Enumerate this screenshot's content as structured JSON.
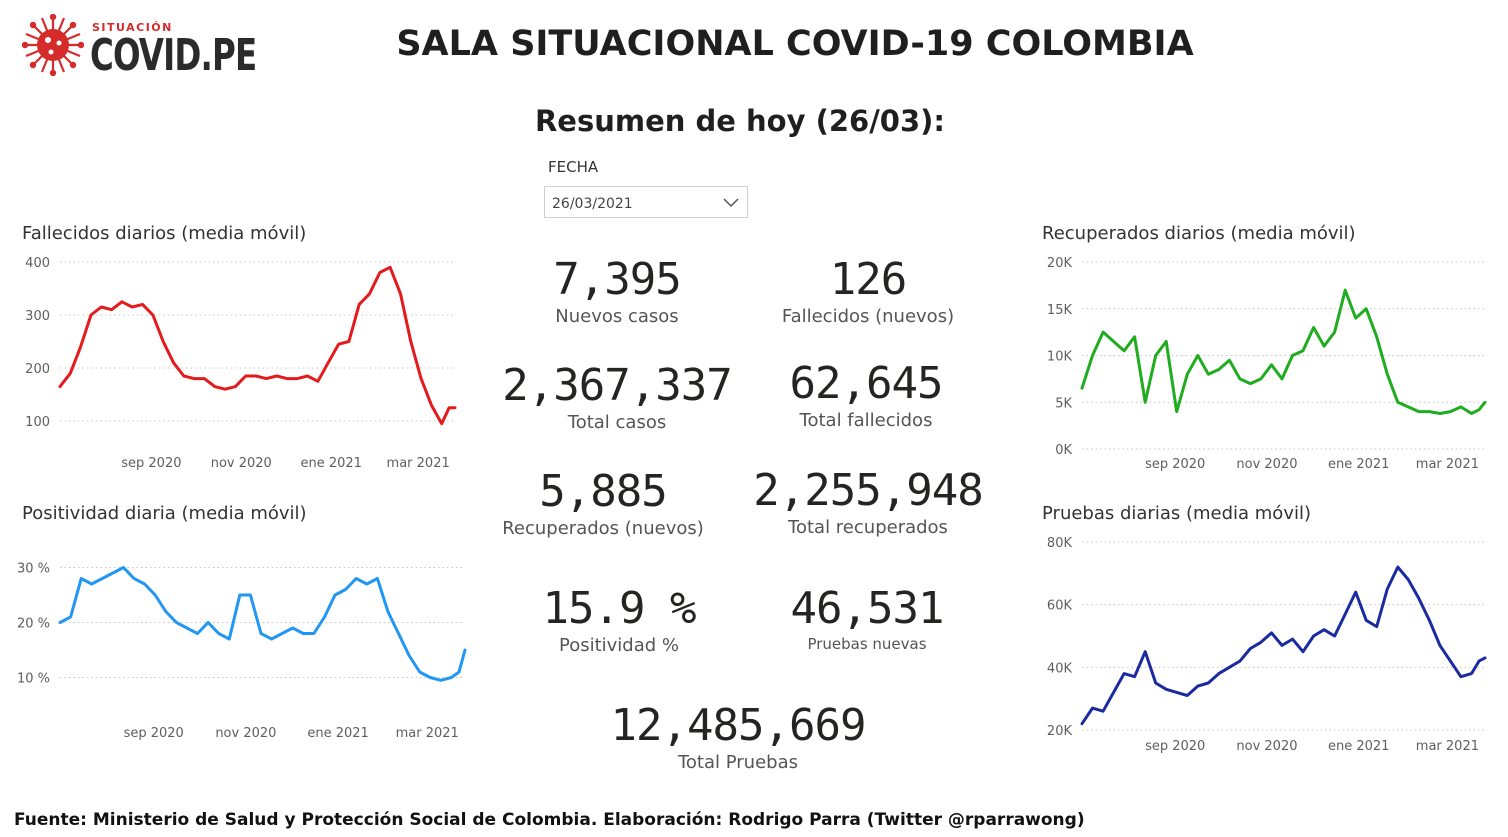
{
  "logo": {
    "small": "SITUACIÓN",
    "big": "COVID.PE"
  },
  "title": "SALA SITUACIONAL COVID-19 COLOMBIA",
  "subtitle": "Resumen de hoy (26/03):",
  "slicer": {
    "label": "FECHA",
    "value": "26/03/2021"
  },
  "kpis": [
    {
      "value": "7,395",
      "label": "Nuevos casos"
    },
    {
      "value": "126",
      "label": "Fallecidos (nuevos)"
    },
    {
      "value": "2,367,337",
      "label": "Total casos"
    },
    {
      "value": "62,645",
      "label": "Total fallecidos"
    },
    {
      "value": "5,885",
      "label": "Recuperados (nuevos)"
    },
    {
      "value": "2,255,948",
      "label": "Total recuperados"
    },
    {
      "value": "15.9 %",
      "label": "Positividad %"
    },
    {
      "value": "46,531",
      "label": "Pruebas nuevas"
    },
    {
      "value": "12,485,669",
      "label": "Total Pruebas"
    }
  ],
  "footer": "Fuente: Ministerio de Salud y Protección Social de Colombia. Elaboración: Rodrigo Parra (Twitter @rparrawong)",
  "chart_data": [
    {
      "id": "fallecidos",
      "type": "line",
      "title": "Fallecidos diarios (media móvil)",
      "color": "#e41a1c",
      "x_range": [
        "2020-07-01",
        "2021-03-26"
      ],
      "ylim": [
        100,
        400
      ],
      "y_ticks": [
        100,
        200,
        300,
        400
      ],
      "y_tick_labels": [
        "100",
        "200",
        "300",
        "400"
      ],
      "x_ticks": [
        "2020-09-01",
        "2020-11-01",
        "2021-01-01",
        "2021-03-01"
      ],
      "x_tick_labels": [
        "sep 2020",
        "nov 2020",
        "ene 2021",
        "mar 2021"
      ],
      "grid": true,
      "series": [
        {
          "x": [
            "2020-07-01",
            "2020-07-08",
            "2020-07-15",
            "2020-07-22",
            "2020-07-29",
            "2020-08-05",
            "2020-08-12",
            "2020-08-19",
            "2020-08-26",
            "2020-09-02",
            "2020-09-09",
            "2020-09-16",
            "2020-09-23",
            "2020-09-30",
            "2020-10-07",
            "2020-10-14",
            "2020-10-21",
            "2020-10-28",
            "2020-11-04",
            "2020-11-11",
            "2020-11-18",
            "2020-11-25",
            "2020-12-02",
            "2020-12-09",
            "2020-12-16",
            "2020-12-23",
            "2020-12-30",
            "2021-01-06",
            "2021-01-13",
            "2021-01-20",
            "2021-01-27",
            "2021-02-03",
            "2021-02-10",
            "2021-02-17",
            "2021-02-24",
            "2021-03-03",
            "2021-03-10",
            "2021-03-17",
            "2021-03-22",
            "2021-03-26"
          ],
          "values": [
            165,
            190,
            240,
            300,
            315,
            310,
            325,
            315,
            320,
            300,
            250,
            210,
            185,
            180,
            180,
            165,
            160,
            165,
            185,
            185,
            180,
            185,
            180,
            180,
            185,
            175,
            210,
            245,
            250,
            320,
            340,
            380,
            390,
            340,
            250,
            180,
            130,
            95,
            125,
            125
          ]
        }
      ]
    },
    {
      "id": "positividad",
      "type": "line",
      "title": "Positividad diaria (media móvil)",
      "color": "#2196f3",
      "x_range": [
        "2020-07-01",
        "2021-03-26"
      ],
      "ylim": [
        5,
        35
      ],
      "y_ticks": [
        10,
        20,
        30
      ],
      "y_tick_labels": [
        "10 %",
        "20 %",
        "30 %"
      ],
      "x_ticks": [
        "2020-09-01",
        "2020-11-01",
        "2021-01-01",
        "2021-03-01"
      ],
      "x_tick_labels": [
        "sep 2020",
        "nov 2020",
        "ene 2021",
        "mar 2021"
      ],
      "grid": true,
      "series": [
        {
          "x": [
            "2020-07-01",
            "2020-07-08",
            "2020-07-15",
            "2020-07-22",
            "2020-07-29",
            "2020-08-05",
            "2020-08-12",
            "2020-08-19",
            "2020-08-26",
            "2020-09-02",
            "2020-09-09",
            "2020-09-16",
            "2020-09-23",
            "2020-09-30",
            "2020-10-07",
            "2020-10-14",
            "2020-10-21",
            "2020-10-28",
            "2020-11-04",
            "2020-11-11",
            "2020-11-18",
            "2020-11-25",
            "2020-12-02",
            "2020-12-09",
            "2020-12-16",
            "2020-12-23",
            "2020-12-30",
            "2021-01-06",
            "2021-01-13",
            "2021-01-20",
            "2021-01-27",
            "2021-02-03",
            "2021-02-10",
            "2021-02-17",
            "2021-02-24",
            "2021-03-03",
            "2021-03-10",
            "2021-03-17",
            "2021-03-22",
            "2021-03-26"
          ],
          "values": [
            20,
            21,
            28,
            27,
            28,
            29,
            30,
            28,
            27,
            25,
            22,
            20,
            19,
            18,
            20,
            18,
            17,
            25,
            25,
            18,
            17,
            18,
            19,
            18,
            18,
            21,
            25,
            26,
            28,
            27,
            28,
            22,
            18,
            14,
            11,
            10,
            9.5,
            10,
            11,
            15
          ]
        }
      ]
    },
    {
      "id": "recuperados",
      "type": "line",
      "title": "Recuperados diarios (media móvil)",
      "color": "#1fad1f",
      "x_range": [
        "2020-07-01",
        "2021-03-26"
      ],
      "ylim": [
        0,
        20000
      ],
      "y_ticks": [
        0,
        5000,
        10000,
        15000,
        20000
      ],
      "y_tick_labels": [
        "0K",
        "5K",
        "10K",
        "15K",
        "20K"
      ],
      "x_ticks": [
        "2020-09-01",
        "2020-11-01",
        "2021-01-01",
        "2021-03-01"
      ],
      "x_tick_labels": [
        "sep 2020",
        "nov 2020",
        "ene 2021",
        "mar 2021"
      ],
      "grid": true,
      "series": [
        {
          "x": [
            "2020-07-01",
            "2020-07-08",
            "2020-07-15",
            "2020-07-22",
            "2020-07-29",
            "2020-08-05",
            "2020-08-12",
            "2020-08-19",
            "2020-08-26",
            "2020-09-02",
            "2020-09-09",
            "2020-09-16",
            "2020-09-23",
            "2020-09-30",
            "2020-10-07",
            "2020-10-14",
            "2020-10-21",
            "2020-10-28",
            "2020-11-04",
            "2020-11-11",
            "2020-11-18",
            "2020-11-25",
            "2020-12-02",
            "2020-12-09",
            "2020-12-16",
            "2020-12-23",
            "2020-12-30",
            "2021-01-06",
            "2021-01-13",
            "2021-01-20",
            "2021-01-27",
            "2021-02-03",
            "2021-02-10",
            "2021-02-17",
            "2021-02-24",
            "2021-03-03",
            "2021-03-10",
            "2021-03-17",
            "2021-03-22",
            "2021-03-26"
          ],
          "values": [
            6500,
            10000,
            12500,
            11500,
            10500,
            12000,
            5000,
            10000,
            11500,
            4000,
            8000,
            10000,
            8000,
            8500,
            9500,
            7500,
            7000,
            7500,
            9000,
            7500,
            10000,
            10500,
            13000,
            11000,
            12500,
            17000,
            14000,
            15000,
            12000,
            8000,
            5000,
            4500,
            4000,
            4000,
            3800,
            4000,
            4500,
            3800,
            4200,
            5000
          ]
        }
      ]
    },
    {
      "id": "pruebas",
      "type": "line",
      "title": "Pruebas diarias (media móvil)",
      "color": "#1a2aa0",
      "x_range": [
        "2020-07-01",
        "2021-03-26"
      ],
      "ylim": [
        20000,
        80000
      ],
      "y_ticks": [
        20000,
        40000,
        60000,
        80000
      ],
      "y_tick_labels": [
        "20K",
        "40K",
        "60K",
        "80K"
      ],
      "x_ticks": [
        "2020-09-01",
        "2020-11-01",
        "2021-01-01",
        "2021-03-01"
      ],
      "x_tick_labels": [
        "sep 2020",
        "nov 2020",
        "ene 2021",
        "mar 2021"
      ],
      "grid": true,
      "series": [
        {
          "x": [
            "2020-07-01",
            "2020-07-08",
            "2020-07-15",
            "2020-07-22",
            "2020-07-29",
            "2020-08-05",
            "2020-08-12",
            "2020-08-19",
            "2020-08-26",
            "2020-09-02",
            "2020-09-09",
            "2020-09-16",
            "2020-09-23",
            "2020-09-30",
            "2020-10-07",
            "2020-10-14",
            "2020-10-21",
            "2020-10-28",
            "2020-11-04",
            "2020-11-11",
            "2020-11-18",
            "2020-11-25",
            "2020-12-02",
            "2020-12-09",
            "2020-12-16",
            "2020-12-23",
            "2020-12-30",
            "2021-01-06",
            "2021-01-13",
            "2021-01-20",
            "2021-01-27",
            "2021-02-03",
            "2021-02-10",
            "2021-02-17",
            "2021-02-24",
            "2021-03-03",
            "2021-03-10",
            "2021-03-17",
            "2021-03-22",
            "2021-03-26"
          ],
          "values": [
            22000,
            27000,
            26000,
            32000,
            38000,
            37000,
            45000,
            35000,
            33000,
            32000,
            31000,
            34000,
            35000,
            38000,
            40000,
            42000,
            46000,
            48000,
            51000,
            47000,
            49000,
            45000,
            50000,
            52000,
            50000,
            57000,
            64000,
            55000,
            53000,
            65000,
            72000,
            68000,
            62000,
            55000,
            47000,
            42000,
            37000,
            38000,
            42000,
            43000
          ]
        }
      ]
    }
  ]
}
